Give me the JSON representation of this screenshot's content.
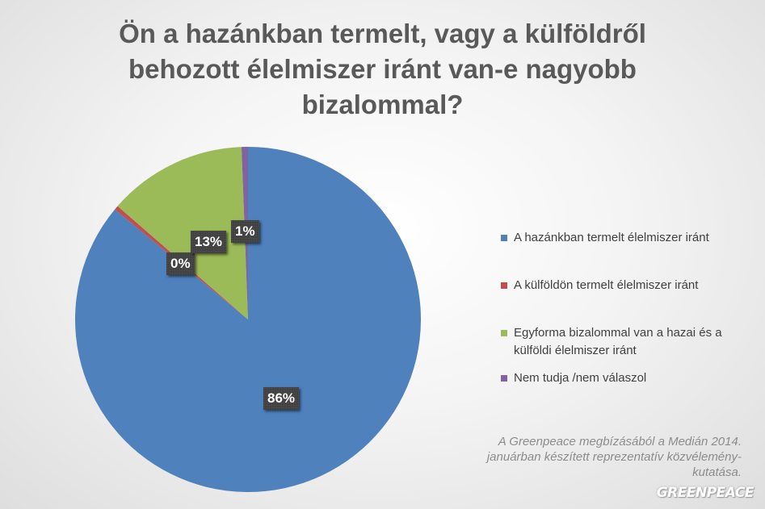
{
  "chart_data": {
    "type": "pie",
    "title_lines": [
      "Ön a hazánkban termelt, vagy a külföldről",
      "behozott élelmiszer iránt van-e nagyobb",
      "bizalommal?"
    ],
    "slices": [
      {
        "name": "A hazánkban termelt élelmiszer iránt",
        "value": 86,
        "label": "86%",
        "color": "#4f81bd"
      },
      {
        "name": "A külföldön termelt élelmiszer iránt",
        "value": 0.4,
        "label": "0%",
        "color": "#c0504d"
      },
      {
        "name": "Egyforma bizalommal van a hazai és a külföldi élelmiszer iránt",
        "value": 13,
        "label": "13%",
        "color": "#9bbb59"
      },
      {
        "name": "Nem tudja /nem válaszol",
        "value": 0.6,
        "label": "1%",
        "color": "#8064a2"
      }
    ],
    "legend": {
      "position": "right"
    }
  },
  "note": "A Greenpeace megbízásából a Medián 2014. januárban készített reprezentatív közvélemény-kutatása.",
  "logo_text": "GREENPEACE"
}
